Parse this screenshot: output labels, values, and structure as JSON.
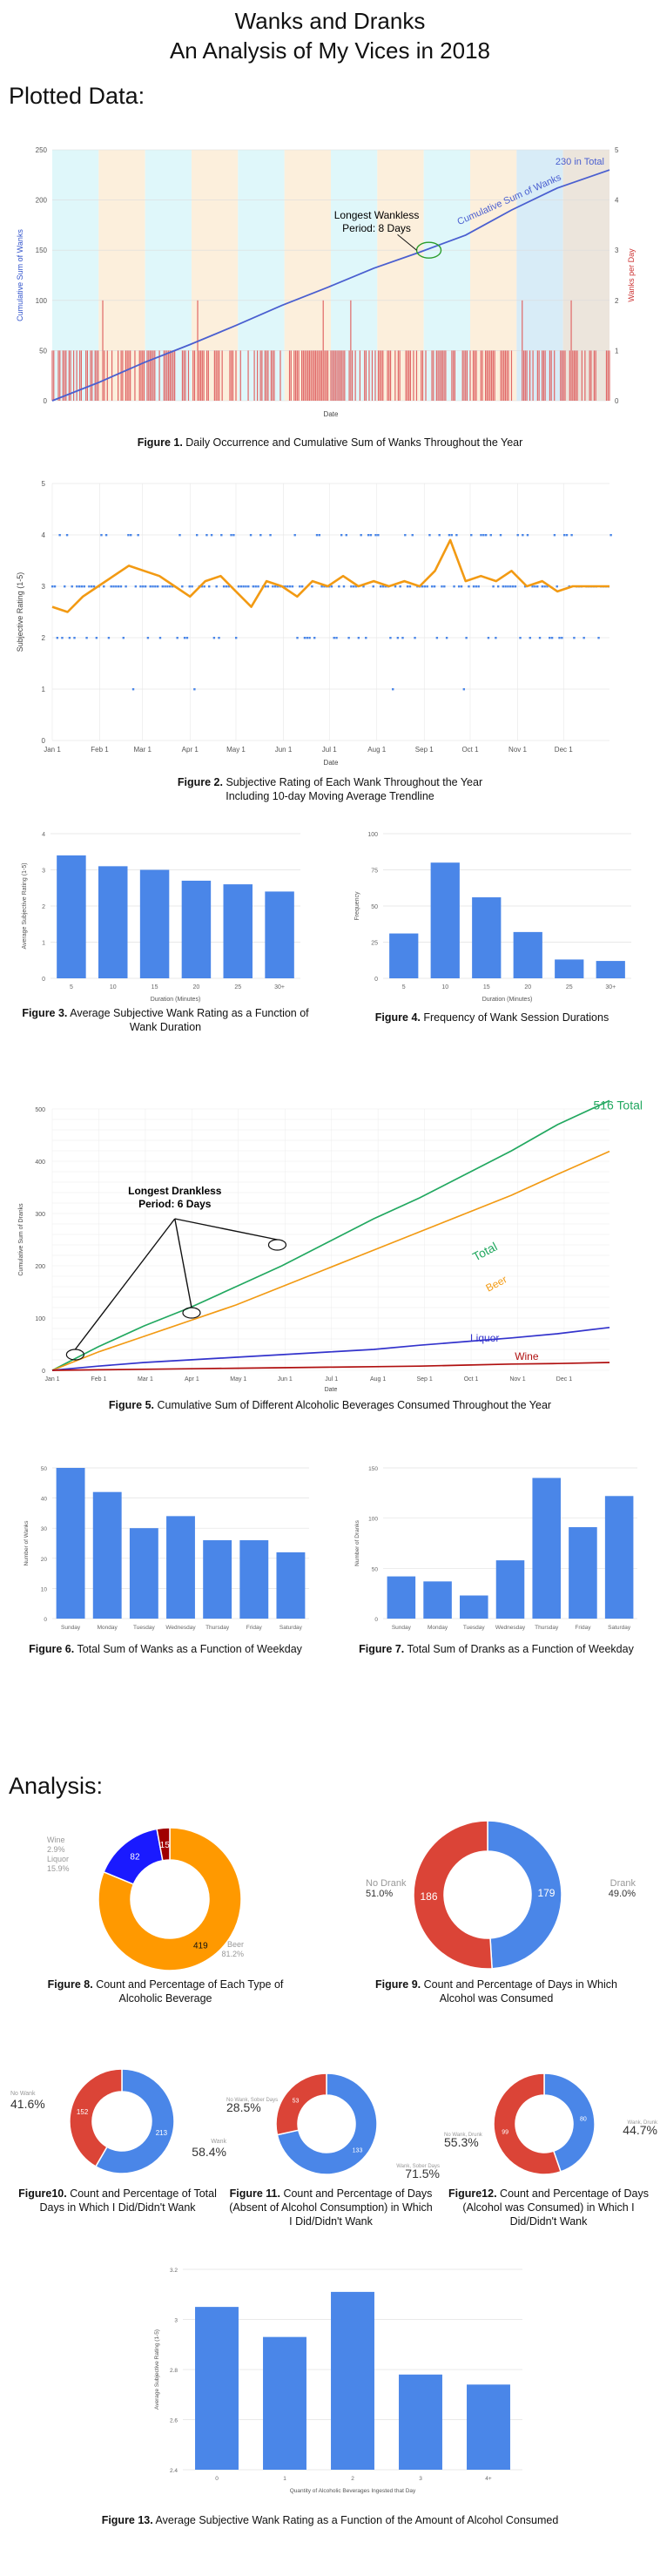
{
  "header": {
    "title_line1": "Wanks and Dranks",
    "title_line2": "An Analysis of My Vices in 2018",
    "section_plotted": "Plotted Data:",
    "section_analysis": "Analysis:"
  },
  "captions": [
    {
      "label": "Figure 1.",
      "text": "Daily Occurrence and Cumulative Sum of Wanks Throughout the Year"
    },
    {
      "label": "Figure 2.",
      "text": "Subjective Rating of Each Wank Throughout the Year",
      "text2": "Including 10-day Moving Average Trendline"
    },
    {
      "label": "Figure 3.",
      "text": "Average Subjective Wank Rating as a Function of",
      "text2": "Wank Duration"
    },
    {
      "label": "Figure 4.",
      "text": "Frequency of Wank Session Durations"
    },
    {
      "label": "Figure 5.",
      "text": "Cumulative Sum of Different Alcoholic Beverages Consumed Throughout the Year"
    },
    {
      "label": "Figure 6.",
      "text": "Total Sum of Wanks as a Function of Weekday"
    },
    {
      "label": "Figure 7.",
      "text": "Total Sum of Dranks as a Function of Weekday"
    },
    {
      "label": "Figure 8.",
      "text": "Count and Percentage of Each Type of",
      "text2": "Alcoholic Beverage"
    },
    {
      "label": "Figure 9.",
      "text": "Count and Percentage of Days in Which",
      "text2": "Alcohol was Consumed"
    },
    {
      "label": "Figure10.",
      "text": "Count and Percentage of Total",
      "text2": "Days in Which I Did/Didn't Wank"
    },
    {
      "label": "Figure 11.",
      "text": "Count and Percentage of Days",
      "text2": "(Absent of Alcohol Consumption) in Which",
      "text3": "I Did/Didn't Wank"
    },
    {
      "label": "Figure12.",
      "text": "Count and Percentage of Days",
      "text2": "(Alcohol was Consumed) in Which I",
      "text3": "Did/Didn't Wank"
    },
    {
      "label": "Figure 13.",
      "text": "Average Subjective Wank Rating as a Function of the Amount of Alcohol Consumed"
    }
  ],
  "chart_data": [
    {
      "id": "fig1",
      "type": "line",
      "xlabel": "Date",
      "ylabel": "Cumulative Sum of Wanks",
      "y2label": "Wanks per Day",
      "ylim": [
        0,
        250
      ],
      "y2lim": [
        0,
        5
      ],
      "yticks": [
        "0",
        "50",
        "100",
        "150",
        "200",
        "250"
      ],
      "y2ticks": [
        "0",
        "1",
        "2",
        "3",
        "4",
        "5"
      ],
      "x_days": [
        0,
        30,
        60,
        90,
        120,
        150,
        180,
        210,
        240,
        270,
        300,
        330,
        364
      ],
      "y_cumulative": [
        0,
        18,
        38,
        56,
        75,
        95,
        113,
        132,
        148,
        165,
        190,
        212,
        230
      ],
      "total_label": "230 in Total",
      "series_label": "Cumulative Sum of Wanks",
      "annotation_line1": "Longest Wankless",
      "annotation_line2": "Period: 8 Days",
      "annotation_day": 246,
      "annotation_value": 150,
      "bar_color": "#e06666",
      "line_color": "#4a5fd0"
    },
    {
      "id": "fig2",
      "type": "scatter",
      "xlabel": "Date",
      "ylabel": "Subjective Rating (1-5)",
      "ylim": [
        0,
        5
      ],
      "yticks": [
        "0",
        "1",
        "2",
        "3",
        "4",
        "5"
      ],
      "xticks": [
        "Jan 1",
        "Feb 1",
        "Mar 1",
        "Apr 1",
        "May 1",
        "Jun 1",
        "Jul 1",
        "Aug 1",
        "Sep 1",
        "Oct 1",
        "Nov 1",
        "Dec 1"
      ],
      "x_tick_days": [
        0,
        31,
        59,
        90,
        120,
        151,
        181,
        212,
        243,
        273,
        304,
        334
      ],
      "trend_days": [
        0,
        10,
        20,
        30,
        40,
        50,
        60,
        70,
        80,
        90,
        100,
        110,
        120,
        130,
        140,
        150,
        160,
        170,
        180,
        190,
        200,
        210,
        220,
        230,
        240,
        250,
        260,
        270,
        280,
        290,
        300,
        310,
        320,
        330,
        340,
        350,
        364
      ],
      "trend_values": [
        2.6,
        2.5,
        2.8,
        3.0,
        3.2,
        3.4,
        3.3,
        3.2,
        3.0,
        2.8,
        3.1,
        3.2,
        2.9,
        2.6,
        3.1,
        3.0,
        2.8,
        3.1,
        3.0,
        3.2,
        3.0,
        3.1,
        3.0,
        3.1,
        3.0,
        3.3,
        3.9,
        3.1,
        3.2,
        3.1,
        3.3,
        3.0,
        3.1,
        2.9,
        3.0,
        3.0,
        3.0
      ],
      "point_color": "#4a86e8",
      "trend_color": "#f29a13"
    },
    {
      "id": "fig3",
      "type": "bar",
      "categories": [
        "5",
        "10",
        "15",
        "20",
        "25",
        "30+"
      ],
      "values": [
        3.4,
        3.1,
        3.0,
        2.7,
        2.6,
        2.4
      ],
      "xlabel": "Duration (Minutes)",
      "ylabel": "Average Subjective Rating (1-5)",
      "ylim": [
        0,
        4
      ],
      "yticks": [
        "0",
        "1",
        "2",
        "3",
        "4"
      ],
      "color": "#4a86e8"
    },
    {
      "id": "fig4",
      "type": "bar",
      "categories": [
        "5",
        "10",
        "15",
        "20",
        "25",
        "30+"
      ],
      "values": [
        31,
        80,
        56,
        32,
        13,
        12
      ],
      "xlabel": "Duration (Minutes)",
      "ylabel": "Frequency",
      "ylim": [
        0,
        100
      ],
      "yticks": [
        "0",
        "25",
        "50",
        "75",
        "100"
      ],
      "color": "#4a86e8"
    },
    {
      "id": "fig5",
      "type": "line",
      "xlabel": "Date",
      "ylabel": "Cumulative Sum of Dranks",
      "ylim": [
        0,
        500
      ],
      "yticks": [
        "0",
        "100",
        "200",
        "300",
        "400",
        "500"
      ],
      "xticks": [
        "Jan 1",
        "Feb 1",
        "Mar 1",
        "Apr 1",
        "May 1",
        "Jun 1",
        "Jul 1",
        "Aug 1",
        "Sep 1",
        "Oct 1",
        "Nov 1",
        "Dec 1"
      ],
      "x_days": [
        0,
        30,
        60,
        90,
        120,
        150,
        180,
        210,
        240,
        270,
        300,
        330,
        364
      ],
      "series": [
        {
          "name": "Total",
          "color": "#22a860",
          "values": [
            0,
            45,
            85,
            120,
            160,
            200,
            245,
            290,
            330,
            375,
            420,
            470,
            516
          ]
        },
        {
          "name": "Beer",
          "color": "#f29a13",
          "values": [
            0,
            35,
            65,
            95,
            125,
            160,
            195,
            230,
            265,
            300,
            335,
            375,
            419
          ]
        },
        {
          "name": "Liquor",
          "color": "#3333cc",
          "values": [
            0,
            8,
            15,
            20,
            25,
            30,
            35,
            40,
            48,
            55,
            62,
            70,
            82
          ]
        },
        {
          "name": "Wine",
          "color": "#b01010",
          "values": [
            0,
            1,
            2,
            3,
            4,
            5,
            6,
            7,
            8,
            10,
            12,
            13,
            15
          ]
        }
      ],
      "total_label": "516 Total",
      "annotation_line1": "Longest Drankless",
      "annotation_line2": "Period: 6 Days",
      "annotation_points": [
        [
          15,
          30
        ],
        [
          91,
          110
        ],
        [
          147,
          240
        ]
      ]
    },
    {
      "id": "fig6",
      "type": "bar",
      "categories": [
        "Sunday",
        "Monday",
        "Tuesday",
        "Wednesday",
        "Thursday",
        "Friday",
        "Saturday"
      ],
      "values": [
        50,
        42,
        30,
        34,
        26,
        26,
        22
      ],
      "ylabel": "Number of Wanks",
      "ylim": [
        0,
        50
      ],
      "yticks": [
        "0",
        "10",
        "20",
        "30",
        "40",
        "50"
      ],
      "color": "#4a86e8"
    },
    {
      "id": "fig7",
      "type": "bar",
      "categories": [
        "Sunday",
        "Monday",
        "Tuesday",
        "Wednesday",
        "Thursday",
        "Friday",
        "Saturday"
      ],
      "values": [
        42,
        37,
        23,
        58,
        140,
        91,
        122
      ],
      "ylabel": "Number of Dranks",
      "ylim": [
        0,
        150
      ],
      "yticks": [
        "0",
        "50",
        "100",
        "150"
      ],
      "color": "#4a86e8"
    },
    {
      "id": "fig8",
      "type": "pie",
      "slices": [
        {
          "label": "Beer",
          "value": 419,
          "pct": "81.2%",
          "color": "#ff9900"
        },
        {
          "label": "Liquor",
          "value": 82,
          "pct": "15.9%",
          "color": "#1a1aff"
        },
        {
          "label": "Wine",
          "value": 15,
          "pct": "2.9%",
          "color": "#a00000"
        }
      ]
    },
    {
      "id": "fig9",
      "type": "pie",
      "slices": [
        {
          "label": "Drank",
          "value": 179,
          "pct": "49.0%",
          "color": "#4a86e8"
        },
        {
          "label": "No Drank",
          "value": 186,
          "pct": "51.0%",
          "color": "#db4437"
        }
      ]
    },
    {
      "id": "fig10",
      "type": "pie",
      "slices": [
        {
          "label": "Wank",
          "value": 213,
          "pct": "58.4%",
          "color": "#4a86e8"
        },
        {
          "label": "No Wank",
          "value": 152,
          "pct": "41.6%",
          "color": "#db4437"
        }
      ]
    },
    {
      "id": "fig11",
      "type": "pie",
      "slices": [
        {
          "label": "Wank, Sober Days",
          "value": 133,
          "pct": "71.5%",
          "color": "#4a86e8"
        },
        {
          "label": "No Wank, Sober Days",
          "value": 53,
          "pct": "28.5%",
          "color": "#db4437"
        }
      ]
    },
    {
      "id": "fig12",
      "type": "pie",
      "slices": [
        {
          "label": "Wank, Drunk",
          "value": 80,
          "pct": "44.7%",
          "color": "#4a86e8"
        },
        {
          "label": "No Wank, Drunk",
          "value": 99,
          "pct": "55.3%",
          "color": "#db4437"
        }
      ]
    },
    {
      "id": "fig13",
      "type": "bar",
      "categories": [
        "0",
        "1",
        "2",
        "3",
        "4+"
      ],
      "values": [
        3.05,
        2.93,
        3.11,
        2.78,
        2.74
      ],
      "xlabel": "Quantity of Alcoholic Beverages Ingested that Day",
      "ylabel": "Average Subjective Rating (1-5)",
      "ylim": [
        2.4,
        3.2
      ],
      "yticks": [
        "2.4",
        "2.6",
        "2.8",
        "3",
        "3.2"
      ],
      "color": "#4a86e8"
    }
  ]
}
